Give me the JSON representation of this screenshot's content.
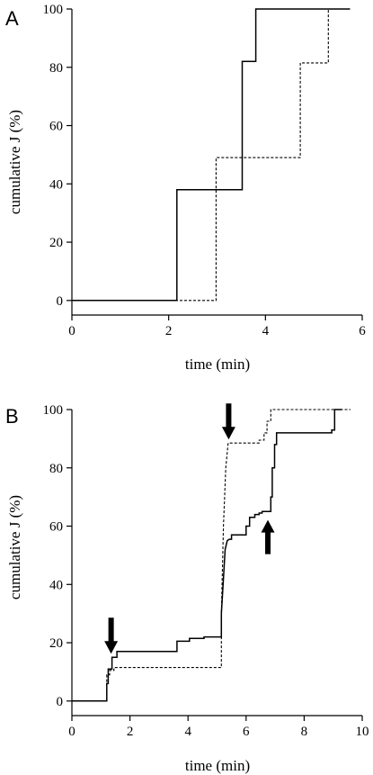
{
  "chart_data": [
    {
      "panel": "A",
      "type": "line",
      "xlabel": "time (min)",
      "ylabel": "cumulative J (%)",
      "xlim": [
        0,
        6
      ],
      "ylim": [
        -5,
        100
      ],
      "xticks": [
        0,
        2,
        4,
        6
      ],
      "yticks": [
        0,
        20,
        40,
        60,
        80,
        100
      ],
      "grid": false,
      "series": [
        {
          "style": "solid",
          "x": [
            0,
            2.17,
            2.17,
            3.52,
            3.52,
            3.8,
            3.8,
            5.75
          ],
          "y": [
            0,
            0,
            38,
            38,
            82,
            82,
            100,
            100
          ]
        },
        {
          "style": "dashed",
          "x": [
            0,
            2.98,
            2.98,
            4.72,
            4.72,
            5.3,
            5.3,
            5.75
          ],
          "y": [
            0,
            0,
            49,
            49,
            81.5,
            81.5,
            100,
            100
          ]
        }
      ]
    },
    {
      "panel": "B",
      "type": "line",
      "xlabel": "time (min)",
      "ylabel": "cumulative J (%)",
      "xlim": [
        0,
        10
      ],
      "ylim": [
        -5,
        100
      ],
      "xticks": [
        0,
        2,
        4,
        6,
        8,
        10
      ],
      "yticks": [
        0,
        20,
        40,
        60,
        80,
        100
      ],
      "grid": false,
      "series": [
        {
          "style": "solid",
          "x": [
            0,
            1.2,
            1.2,
            1.25,
            1.25,
            1.38,
            1.38,
            1.55,
            1.55,
            3.62,
            3.62,
            4.05,
            4.05,
            4.55,
            4.55,
            5.15,
            5.15,
            5.22,
            5.28,
            5.35,
            5.42,
            5.5,
            5.5,
            6.0,
            6.0,
            6.12,
            6.12,
            6.3,
            6.3,
            6.45,
            6.45,
            6.55,
            6.55,
            6.85,
            6.85,
            6.9,
            6.9,
            6.98,
            6.98,
            7.05,
            7.05,
            8.95,
            8.95,
            9.05,
            9.05,
            9.3
          ],
          "y": [
            0,
            0,
            6,
            6,
            11,
            11,
            15,
            15,
            17,
            17,
            20.5,
            20.5,
            21.5,
            21.5,
            22,
            22,
            30,
            42,
            52,
            55,
            55.5,
            55.5,
            57,
            57,
            60,
            60,
            63,
            63,
            64,
            64,
            64.5,
            64.5,
            65,
            65,
            70,
            70,
            80,
            80,
            88,
            88,
            92,
            92,
            93,
            93,
            100,
            100
          ]
        },
        {
          "style": "dashed",
          "x": [
            0,
            1.2,
            1.2,
            1.3,
            1.3,
            1.45,
            1.45,
            5.15,
            5.15,
            5.22,
            5.3,
            5.38,
            5.38,
            6.45,
            6.45,
            6.62,
            6.62,
            6.72,
            6.72,
            6.85,
            6.85,
            6.95,
            6.95,
            9.6
          ],
          "y": [
            0,
            0,
            9,
            9,
            10.5,
            10.5,
            11.5,
            11.5,
            30,
            60,
            80,
            88.5,
            88.5,
            88.5,
            89.5,
            89.5,
            92,
            92,
            96,
            96,
            100,
            100,
            100,
            100
          ]
        }
      ],
      "annotations": [
        {
          "shape": "arrow-down",
          "x": 1.35,
          "y": 15
        },
        {
          "shape": "arrow-down",
          "x": 5.4,
          "y": 88.5
        },
        {
          "shape": "arrow-up",
          "x": 6.75,
          "y": 64
        }
      ]
    }
  ]
}
